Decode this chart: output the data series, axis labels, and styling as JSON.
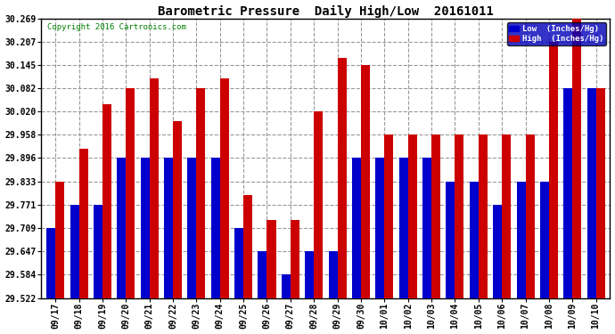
{
  "title": "Barometric Pressure  Daily High/Low  20161011",
  "copyright": "Copyright 2016 Cartronics.com",
  "legend_low": "Low  (Inches/Hg)",
  "legend_high": "High  (Inches/Hg)",
  "low_color": "#0000cc",
  "high_color": "#cc0000",
  "background_color": "#ffffff",
  "grid_color": "#999999",
  "ylim": [
    29.522,
    30.269
  ],
  "yticks": [
    29.522,
    29.584,
    29.647,
    29.709,
    29.771,
    29.833,
    29.896,
    29.958,
    30.02,
    30.082,
    30.145,
    30.207,
    30.269
  ],
  "dates": [
    "09/17",
    "09/18",
    "09/19",
    "09/20",
    "09/21",
    "09/22",
    "09/23",
    "09/24",
    "09/25",
    "09/26",
    "09/27",
    "09/28",
    "09/29",
    "09/30",
    "10/01",
    "10/02",
    "10/03",
    "10/04",
    "10/05",
    "10/06",
    "10/07",
    "10/08",
    "10/09",
    "10/10"
  ],
  "low_values": [
    29.709,
    29.771,
    29.771,
    29.896,
    29.896,
    29.896,
    29.896,
    29.896,
    29.709,
    29.647,
    29.584,
    29.647,
    29.647,
    29.896,
    29.896,
    29.896,
    29.896,
    29.833,
    29.833,
    29.771,
    29.833,
    29.833,
    30.082,
    30.082
  ],
  "high_values": [
    29.833,
    29.92,
    30.04,
    30.082,
    30.108,
    29.996,
    30.082,
    30.108,
    29.796,
    29.73,
    29.73,
    30.02,
    30.164,
    30.145,
    29.958,
    29.958,
    29.958,
    29.958,
    29.958,
    29.958,
    29.958,
    30.207,
    30.269,
    30.082
  ],
  "bar_width": 0.38,
  "figwidth": 6.9,
  "figheight": 3.75,
  "dpi": 100,
  "title_fontsize": 10,
  "tick_fontsize": 7,
  "copyright_fontsize": 6.5,
  "legend_fontsize": 6.5
}
